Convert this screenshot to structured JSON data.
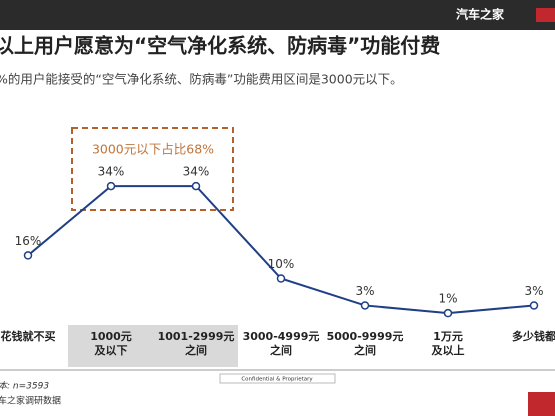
{
  "header": {
    "brand": "汽车之家"
  },
  "chart_data": {
    "type": "line",
    "title": "以上用户愿意为“空气净化系统、防病毒”功能付费",
    "subtitle": "%的用户能接受的“空气净化系统、防病毒”功能费用区间是3000元以下。",
    "annotation": "3000元以下占比68%",
    "categories": [
      "花钱就不买",
      "1000元\n及以下",
      "1001-2999元\n之间",
      "3000-4999元\n之间",
      "5000-9999元\n之间",
      "1万元\n及以上",
      "多少钱都"
    ],
    "values": [
      16,
      34,
      34,
      10,
      3,
      1,
      3
    ],
    "value_labels": [
      "16%",
      "34%",
      "34%",
      "10%",
      "3%",
      "1%",
      "3%"
    ],
    "color": "#1f3f86"
  },
  "footer": {
    "sample": "本: n=3593",
    "source": "车之家调研数据",
    "confidential": "Confidential & Proprietary"
  }
}
